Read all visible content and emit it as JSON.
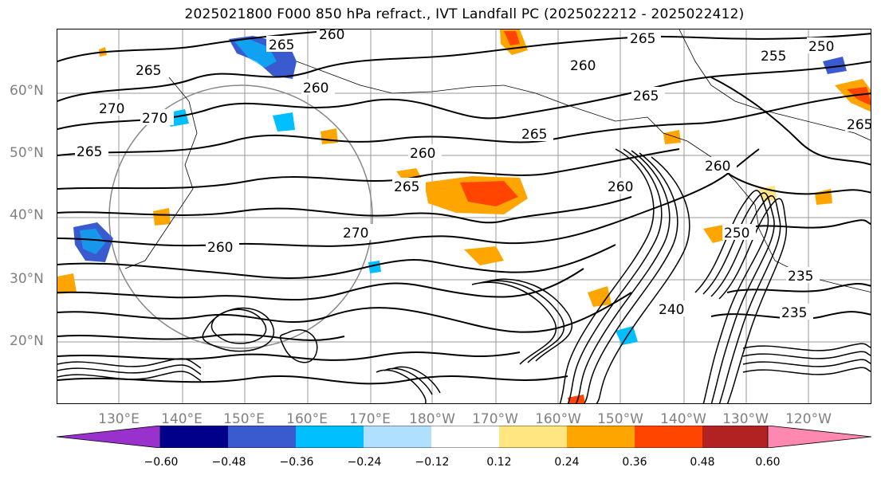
{
  "title": "2025021800 F000 850 hPa refract., IVT Landfall PC (2025022212 - 2025022412)",
  "lat_labels": [
    "60°N",
    "50°N",
    "40°N",
    "30°N",
    "20°N"
  ],
  "lon_labels": [
    "130°E",
    "140°E",
    "150°E",
    "160°E",
    "170°E",
    "180°W",
    "170°W",
    "160°W",
    "150°W",
    "140°W",
    "130°W",
    "120°W"
  ],
  "contour_labels": [
    "265",
    "260",
    "265",
    "265",
    "260",
    "270",
    "270",
    "265",
    "260",
    "265",
    "265",
    "260",
    "270",
    "260",
    "265",
    "260",
    "255",
    "250",
    "265",
    "260",
    "250",
    "235",
    "240",
    "235"
  ],
  "colorbar": {
    "ticks": [
      "−0.60",
      "−0.48",
      "−0.36",
      "−0.24",
      "−0.12",
      "0.12",
      "0.24",
      "0.36",
      "0.48",
      "0.60"
    ],
    "colors": [
      "#9932CC",
      "#00008B",
      "#3A5BD0",
      "#00BFFF",
      "#B0E0FF",
      "#FFFFFF",
      "#FFE680",
      "#FFA500",
      "#FF4500",
      "#B22222",
      "#FF88B0"
    ]
  }
}
